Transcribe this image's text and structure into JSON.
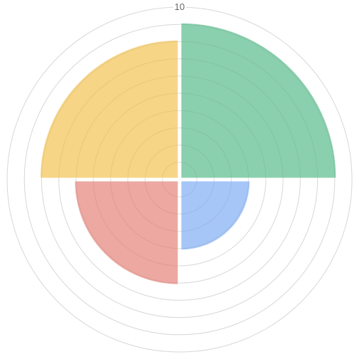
{
  "chart_data": {
    "type": "polarArea",
    "r_range": [
      0,
      10
    ],
    "r_ticks": [
      0,
      1,
      2,
      3,
      4,
      5,
      6,
      7,
      8,
      9,
      10
    ],
    "r_tick_labels_visible": [
      "10"
    ],
    "grid": true,
    "legend": "none",
    "slices": [
      {
        "quadrant": "top-right",
        "value": 9,
        "color": "#85ceaa"
      },
      {
        "quadrant": "bottom-right",
        "value": 4,
        "color": "#a1c3f7"
      },
      {
        "quadrant": "bottom-left",
        "value": 6,
        "color": "#eba39c"
      },
      {
        "quadrant": "top-left",
        "value": 8,
        "color": "#f6d380"
      }
    ],
    "grid_color": "#e5e5e5"
  }
}
